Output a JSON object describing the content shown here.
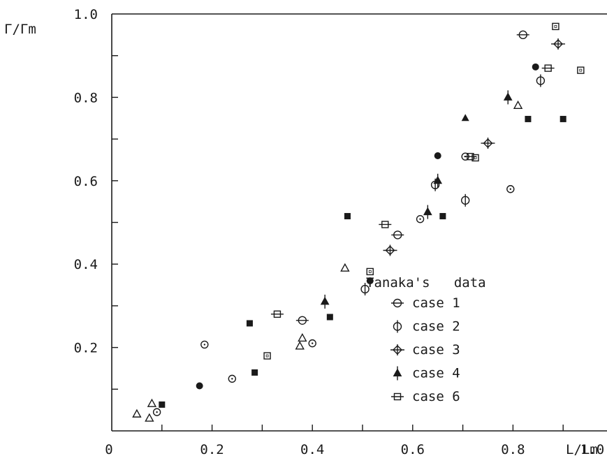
{
  "chart_data": {
    "type": "scatter",
    "xlabel": "L/Lm",
    "ylabel": "Γ/Γm",
    "xlim": [
      0,
      1.0
    ],
    "ylim": [
      0,
      1.0
    ],
    "x_ticks": [
      "0",
      "0.2",
      "0.4",
      "0.6",
      "0.8",
      "1.0"
    ],
    "y_ticks": [
      "0.2",
      "0.4",
      "0.6",
      "0.8",
      "1.0"
    ],
    "grid": false,
    "legend_title": "Tanaka's   data",
    "legend_position": "lower-right",
    "series": [
      {
        "name": "case 1",
        "marker": "circle-hbar",
        "points": [
          [
            0.38,
            0.265
          ],
          [
            0.57,
            0.47
          ],
          [
            0.82,
            0.95
          ]
        ]
      },
      {
        "name": "case 2",
        "marker": "circle-vbar",
        "points": [
          [
            0.505,
            0.34
          ],
          [
            0.645,
            0.59
          ],
          [
            0.705,
            0.553
          ],
          [
            0.855,
            0.84
          ]
        ]
      },
      {
        "name": "case 3",
        "marker": "diamond-cross",
        "points": [
          [
            0.555,
            0.433
          ],
          [
            0.75,
            0.69
          ],
          [
            0.89,
            0.928
          ]
        ]
      },
      {
        "name": "case 4",
        "marker": "triangle-vbar",
        "points": [
          [
            0.425,
            0.31
          ],
          [
            0.63,
            0.525
          ],
          [
            0.65,
            0.6
          ],
          [
            0.79,
            0.8
          ]
        ]
      },
      {
        "name": "case 6",
        "marker": "square-hbar",
        "points": [
          [
            0.33,
            0.28
          ],
          [
            0.545,
            0.495
          ],
          [
            0.715,
            0.658
          ],
          [
            0.87,
            0.87
          ]
        ]
      },
      {
        "marker": "filled-circle",
        "points": [
          [
            0.175,
            0.108
          ],
          [
            0.515,
            0.36
          ],
          [
            0.65,
            0.66
          ],
          [
            0.845,
            0.873
          ]
        ]
      },
      {
        "marker": "filled-square",
        "points": [
          [
            0.1,
            0.063
          ],
          [
            0.275,
            0.258
          ],
          [
            0.285,
            0.14
          ],
          [
            0.435,
            0.273
          ],
          [
            0.47,
            0.515
          ],
          [
            0.66,
            0.515
          ],
          [
            0.83,
            0.748
          ],
          [
            0.9,
            0.748
          ]
        ]
      },
      {
        "marker": "filled-triangle",
        "points": [
          [
            0.705,
            0.75
          ]
        ]
      },
      {
        "marker": "open-circle",
        "points": [
          [
            0.09,
            0.045
          ],
          [
            0.185,
            0.207
          ],
          [
            0.24,
            0.125
          ],
          [
            0.4,
            0.21
          ],
          [
            0.615,
            0.508
          ],
          [
            0.705,
            0.658
          ],
          [
            0.795,
            0.58
          ]
        ]
      },
      {
        "marker": "open-triangle",
        "points": [
          [
            0.05,
            0.04
          ],
          [
            0.075,
            0.03
          ],
          [
            0.08,
            0.065
          ],
          [
            0.375,
            0.203
          ],
          [
            0.38,
            0.222
          ],
          [
            0.465,
            0.39
          ],
          [
            0.81,
            0.78
          ]
        ]
      },
      {
        "marker": "open-square",
        "points": [
          [
            0.31,
            0.18
          ],
          [
            0.515,
            0.382
          ],
          [
            0.725,
            0.655
          ],
          [
            0.885,
            0.97
          ],
          [
            0.935,
            0.865
          ]
        ]
      }
    ]
  }
}
